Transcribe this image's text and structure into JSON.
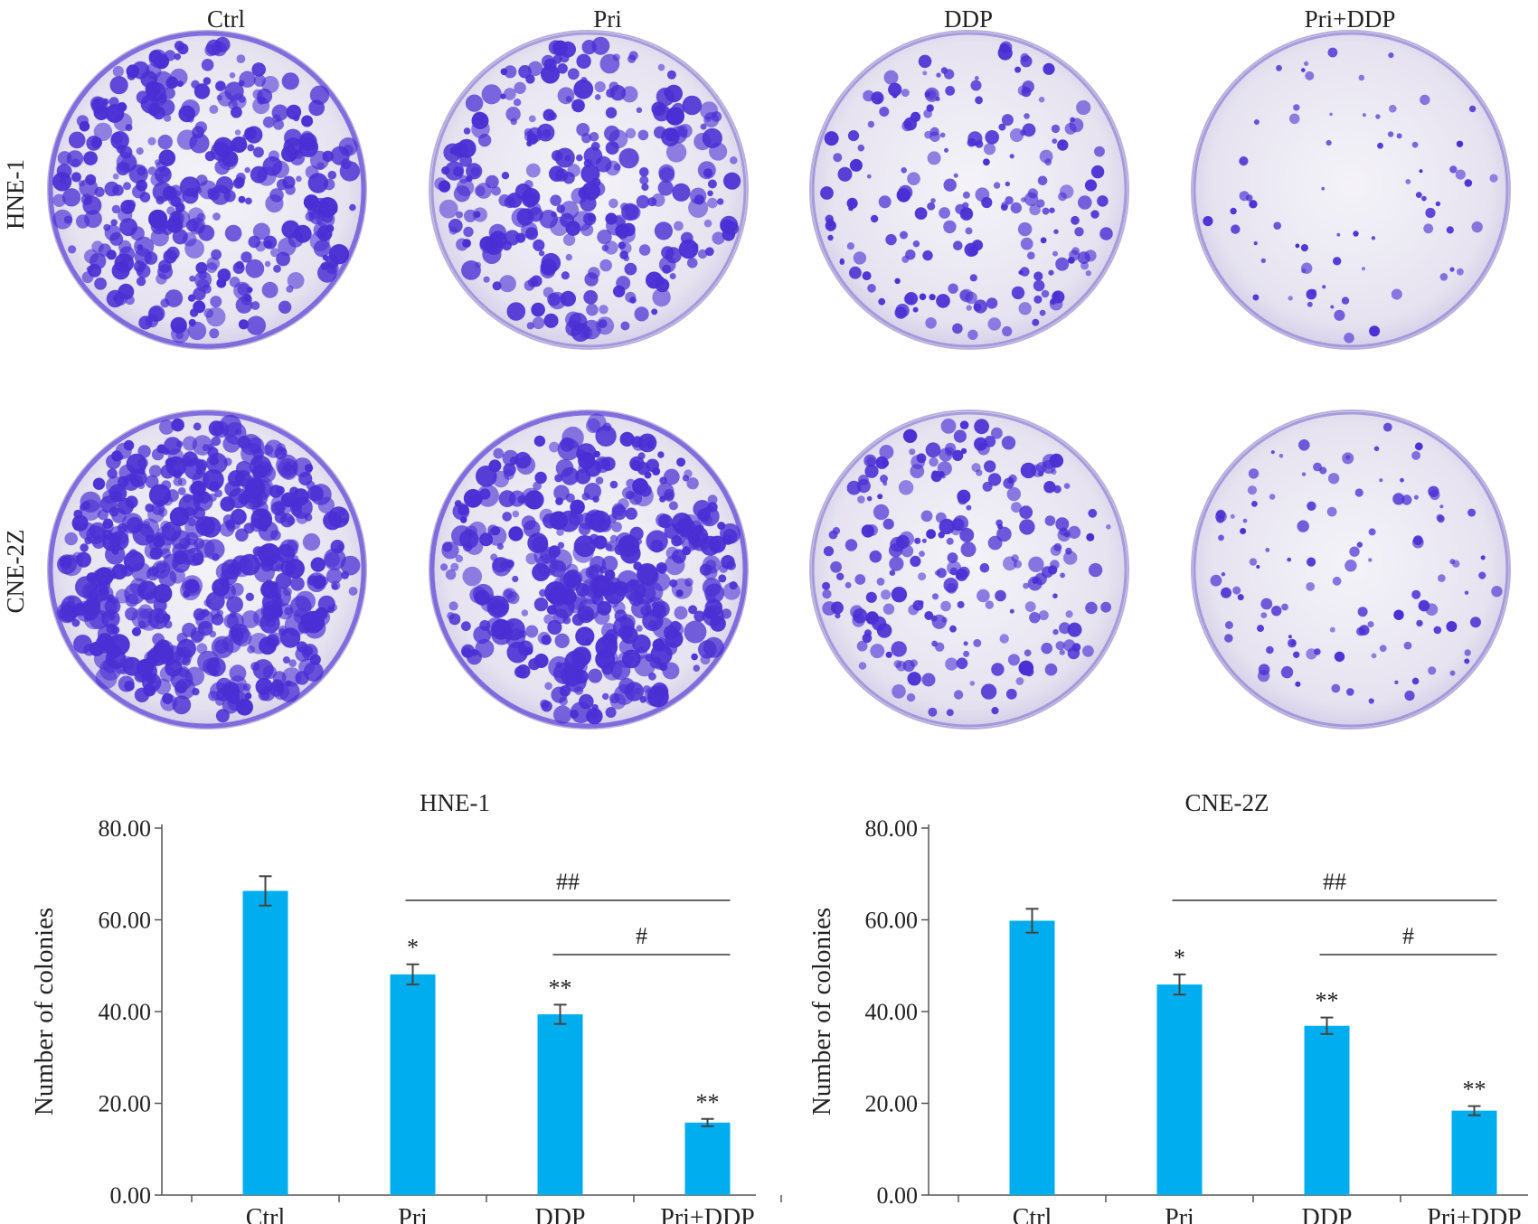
{
  "panel_a": {
    "column_labels": [
      "Ctrl",
      "Pri",
      "DDP",
      "Pri+DDP"
    ],
    "row_labels": [
      "HNE-1",
      "CNE-2Z"
    ],
    "colors": {
      "stain": "#4a2fd4",
      "dish": "#eceaf3"
    }
  },
  "chart_data": [
    {
      "type": "bar",
      "title": "HNE-1",
      "ylabel": "Number of colonies",
      "categories": [
        "Ctrl",
        "Pri",
        "DDP",
        "Pri+DDP"
      ],
      "values": [
        66.3,
        48.1,
        39.4,
        15.8
      ],
      "errors": [
        3.2,
        2.2,
        2.1,
        0.8
      ],
      "ylim": [
        0,
        80
      ],
      "yticks": [
        "0.00",
        "20.00",
        "40.00",
        "60.00",
        "80.00"
      ],
      "bar_color": "#00aeef",
      "annotations": [
        "",
        "*",
        "**",
        "**"
      ],
      "brackets": [
        {
          "from": "Pri",
          "to": "Pri+DDP",
          "label": "##"
        },
        {
          "from": "DDP",
          "to": "Pri+DDP",
          "label": "#"
        }
      ]
    },
    {
      "type": "bar",
      "title": "CNE-2Z",
      "ylabel": "Number of colonies",
      "categories": [
        "Ctrl",
        "Pri",
        "DDP",
        "Pri+DDP"
      ],
      "values": [
        59.8,
        45.9,
        36.9,
        18.4
      ],
      "errors": [
        2.6,
        2.2,
        1.8,
        1.0
      ],
      "ylim": [
        0,
        80
      ],
      "yticks": [
        "0.00",
        "20.00",
        "40.00",
        "60.00",
        "80.00"
      ],
      "bar_color": "#00aeef",
      "annotations": [
        "",
        "*",
        "**",
        "**"
      ],
      "brackets": [
        {
          "from": "Pri",
          "to": "Pri+DDP",
          "label": "##"
        },
        {
          "from": "DDP",
          "to": "Pri+DDP",
          "label": "#"
        }
      ]
    }
  ]
}
